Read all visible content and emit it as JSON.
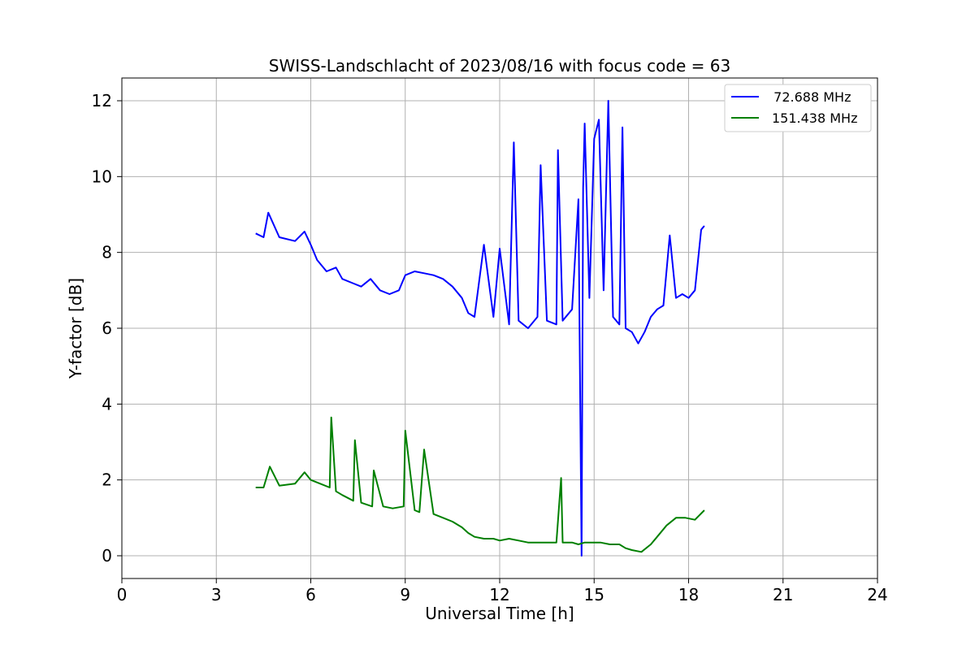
{
  "chart_data": {
    "type": "line",
    "title": "SWISS-Landschlacht of 2023/08/16 with focus code = 63",
    "xlabel": "Universal Time [h]",
    "ylabel": "Y-factor [dB]",
    "xlim": [
      0,
      24
    ],
    "ylim": [
      -0.6,
      12.6
    ],
    "xticks": [
      "0",
      "3",
      "6",
      "9",
      "12",
      "15",
      "18",
      "21",
      "24"
    ],
    "yticks": [
      "0",
      "2",
      "4",
      "6",
      "8",
      "10",
      "12"
    ],
    "grid": true,
    "legend_position": "top-right",
    "series": [
      {
        "name": "  72.688 MHz",
        "color": "#0000ff",
        "x": [
          4.25,
          4.5,
          4.65,
          5.0,
          5.5,
          5.8,
          6.0,
          6.2,
          6.5,
          6.8,
          7.0,
          7.3,
          7.6,
          7.9,
          8.2,
          8.5,
          8.8,
          9.0,
          9.3,
          9.6,
          9.9,
          10.2,
          10.5,
          10.8,
          11.0,
          11.2,
          11.5,
          11.8,
          12.0,
          12.3,
          12.45,
          12.6,
          12.9,
          13.2,
          13.3,
          13.5,
          13.8,
          13.85,
          14.0,
          14.3,
          14.5,
          14.6,
          14.65,
          14.7,
          14.85,
          15.0,
          15.15,
          15.3,
          15.45,
          15.6,
          15.8,
          15.9,
          16.0,
          16.2,
          16.4,
          16.6,
          16.8,
          17.0,
          17.2,
          17.4,
          17.6,
          17.8,
          18.0,
          18.2,
          18.4,
          18.5
        ],
        "y": [
          8.5,
          8.4,
          9.05,
          8.4,
          8.3,
          8.55,
          8.2,
          7.8,
          7.5,
          7.6,
          7.3,
          7.2,
          7.1,
          7.3,
          7.0,
          6.9,
          7.0,
          7.4,
          7.5,
          7.45,
          7.4,
          7.3,
          7.1,
          6.8,
          6.4,
          6.3,
          8.2,
          6.3,
          8.1,
          6.1,
          10.9,
          6.2,
          6.0,
          6.3,
          10.3,
          6.2,
          6.1,
          10.7,
          6.2,
          6.5,
          9.4,
          0.0,
          9.7,
          11.4,
          6.8,
          11.0,
          11.5,
          7.0,
          12.0,
          6.3,
          6.1,
          11.3,
          6.0,
          5.9,
          5.6,
          5.9,
          6.3,
          6.5,
          6.6,
          8.45,
          6.8,
          6.9,
          6.8,
          7.0,
          8.6,
          8.7
        ]
      },
      {
        "name": "151.438 MHz",
        "color": "#008000",
        "x": [
          4.25,
          4.5,
          4.7,
          5.0,
          5.5,
          5.8,
          6.0,
          6.3,
          6.6,
          6.65,
          6.8,
          7.0,
          7.35,
          7.4,
          7.6,
          7.95,
          8.0,
          8.3,
          8.6,
          8.95,
          9.0,
          9.3,
          9.45,
          9.6,
          9.9,
          10.2,
          10.5,
          10.8,
          11.0,
          11.2,
          11.5,
          11.8,
          12.0,
          12.3,
          12.6,
          12.9,
          13.2,
          13.5,
          13.8,
          13.95,
          14.0,
          14.3,
          14.5,
          14.7,
          14.9,
          15.2,
          15.5,
          15.8,
          16.0,
          16.2,
          16.5,
          16.8,
          17.0,
          17.3,
          17.6,
          17.9,
          18.2,
          18.5
        ],
        "y": [
          1.8,
          1.8,
          2.35,
          1.85,
          1.9,
          2.2,
          2.0,
          1.9,
          1.8,
          3.65,
          1.7,
          1.6,
          1.45,
          3.05,
          1.4,
          1.3,
          2.25,
          1.3,
          1.25,
          1.3,
          3.3,
          1.2,
          1.15,
          2.8,
          1.1,
          1.0,
          0.9,
          0.75,
          0.6,
          0.5,
          0.45,
          0.45,
          0.4,
          0.45,
          0.4,
          0.35,
          0.35,
          0.35,
          0.35,
          2.05,
          0.35,
          0.35,
          0.3,
          0.35,
          0.35,
          0.35,
          0.3,
          0.3,
          0.2,
          0.15,
          0.1,
          0.3,
          0.5,
          0.8,
          1.0,
          1.0,
          0.95,
          1.2
        ]
      }
    ]
  }
}
